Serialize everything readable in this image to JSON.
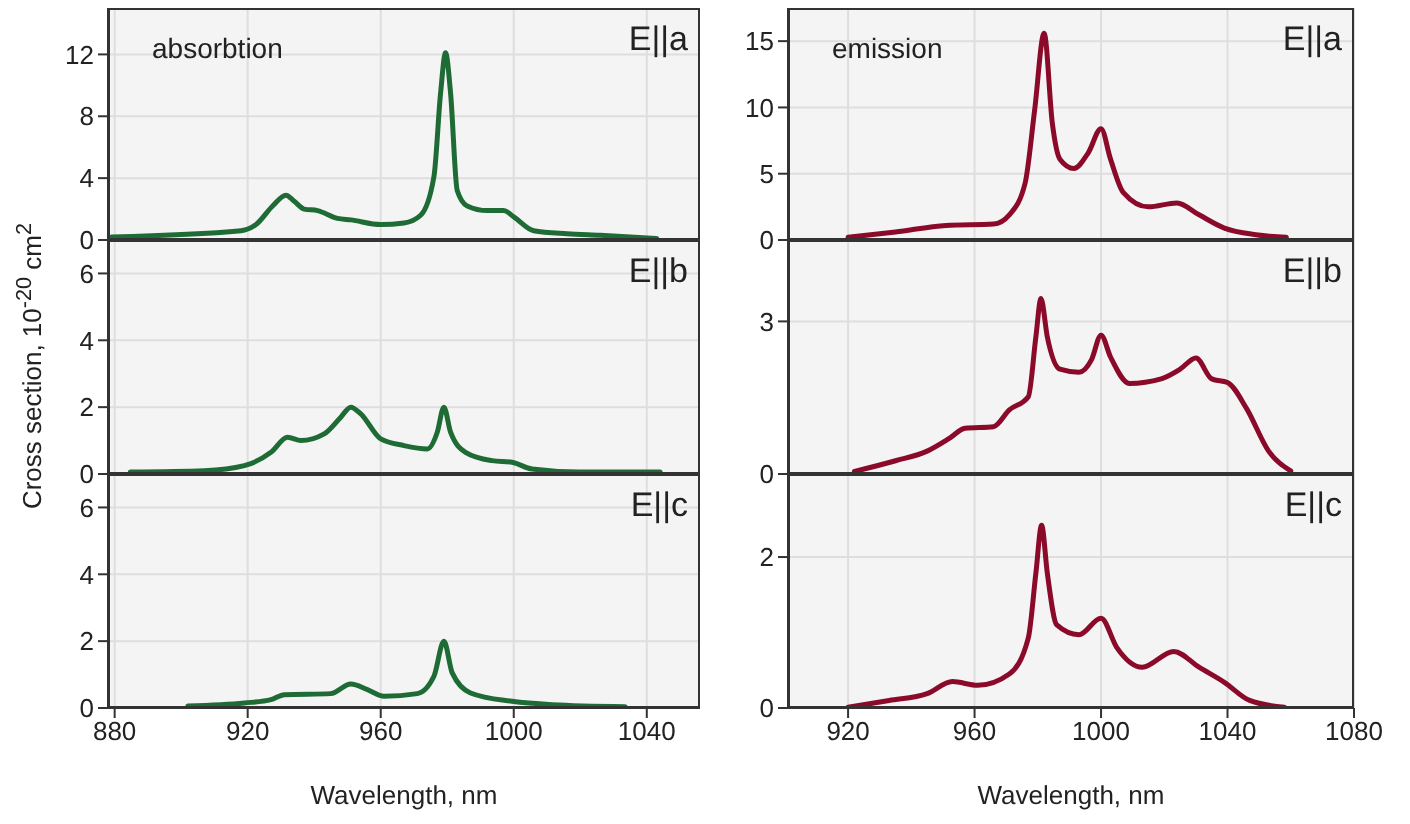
{
  "chart_data": [
    {
      "type": "line",
      "title": "E||a",
      "annotations": [
        "absorbtion"
      ],
      "color": "#1f6b35",
      "tick_labels": "y",
      "grid": true,
      "xlim": [
        878,
        1056
      ],
      "xticks": [
        880,
        920,
        960,
        1000,
        1040
      ],
      "ylim": [
        0,
        15
      ],
      "yticks": [
        0,
        4,
        8,
        12
      ],
      "x": [
        879,
        918,
        922.5,
        927.5,
        931.5,
        934,
        937,
        941,
        947,
        951,
        960,
        967,
        972,
        976,
        978,
        979.5,
        981,
        983,
        986,
        992,
        997,
        1000,
        1006,
        1016,
        1026,
        1043
      ],
      "values": [
        0.2,
        0.6,
        1.0,
        2.2,
        2.9,
        2.5,
        2.0,
        1.9,
        1.4,
        1.3,
        1.0,
        1.1,
        1.6,
        4.1,
        9.5,
        12.1,
        9.5,
        3.2,
        2.2,
        1.9,
        1.9,
        1.5,
        0.6,
        0.4,
        0.3,
        0.1
      ]
    },
    {
      "type": "line",
      "title": "E||a",
      "annotations": [
        "emission"
      ],
      "color": "#8b0a2a",
      "tick_labels": "y",
      "grid": true,
      "xlim": [
        901,
        1080
      ],
      "xticks": [
        920,
        960,
        1000,
        1040,
        1080
      ],
      "ylim": [
        0,
        17.5
      ],
      "yticks": [
        0,
        5,
        10,
        15
      ],
      "x": [
        920,
        935,
        951,
        966,
        971,
        976,
        979,
        982,
        984.6,
        987,
        991.4,
        996,
        1000,
        1003,
        1007,
        1015,
        1024,
        1031,
        1039,
        1049,
        1058.6
      ],
      "values": [
        0.2,
        0.6,
        1.1,
        1.2,
        1.9,
        4.3,
        9.8,
        15.6,
        8.8,
        6.1,
        5.4,
        6.6,
        8.4,
        6.1,
        3.6,
        2.5,
        2.8,
        1.9,
        0.9,
        0.4,
        0.2
      ]
    },
    {
      "type": "line",
      "title": "E||b",
      "ylabel": "Cross section, 10$^{-20}$ cm$^{2}$",
      "color": "#1f6b35",
      "tick_labels": "y",
      "grid": true,
      "xlim": [
        878,
        1056
      ],
      "xticks": [
        880,
        920,
        960,
        1000,
        1040
      ],
      "ylim": [
        0,
        7
      ],
      "yticks": [
        0,
        2,
        4,
        6
      ],
      "x": [
        884.7,
        907,
        919,
        927,
        932,
        936,
        943,
        948,
        951,
        954,
        960,
        967,
        974,
        977,
        979,
        981,
        985.5,
        993.5,
        999.5,
        1005.5,
        1019.5,
        1044
      ],
      "values": [
        0.06,
        0.1,
        0.25,
        0.65,
        1.1,
        1.0,
        1.2,
        1.7,
        2.0,
        1.8,
        1.05,
        0.85,
        0.75,
        1.25,
        2.0,
        1.25,
        0.65,
        0.4,
        0.35,
        0.15,
        0.06,
        0.06
      ]
    },
    {
      "type": "line",
      "title": "E||b",
      "color": "#8b0a2a",
      "tick_labels": "y",
      "grid": true,
      "xlim": [
        901,
        1080
      ],
      "xticks": [
        920,
        960,
        1000,
        1040,
        1080
      ],
      "ylim": [
        0,
        4.6
      ],
      "yticks": [
        0,
        3
      ],
      "x": [
        922,
        935,
        945,
        952,
        957,
        966,
        971,
        977,
        979.4,
        981,
        983,
        987,
        993,
        997,
        1000,
        1003,
        1009,
        1019,
        1025,
        1030,
        1035,
        1040,
        1046,
        1053,
        1060
      ],
      "values": [
        0.05,
        0.26,
        0.45,
        0.7,
        0.9,
        0.93,
        1.26,
        1.52,
        2.7,
        3.45,
        2.7,
        2.06,
        2.0,
        2.25,
        2.73,
        2.3,
        1.78,
        1.87,
        2.06,
        2.28,
        1.87,
        1.8,
        1.29,
        0.45,
        0.06
      ]
    },
    {
      "type": "line",
      "title": "E||c",
      "xlabel": "Wavelength, nm",
      "color": "#1f6b35",
      "grid": true,
      "xlim": [
        878,
        1056
      ],
      "xticks": [
        880,
        920,
        960,
        1000,
        1040
      ],
      "ylim": [
        0,
        7
      ],
      "yticks": [
        0,
        2,
        4,
        6
      ],
      "x": [
        902,
        919,
        927,
        931,
        945,
        951,
        956,
        961,
        971,
        976,
        979,
        981.5,
        987,
        999.5,
        1011.5,
        1033.5
      ],
      "values": [
        0.06,
        0.15,
        0.25,
        0.4,
        0.43,
        0.72,
        0.55,
        0.35,
        0.43,
        0.95,
        2.0,
        1.05,
        0.45,
        0.2,
        0.1,
        0.04
      ]
    },
    {
      "type": "line",
      "title": "E||c",
      "xlabel": "Wavelength, nm",
      "color": "#8b0a2a",
      "grid": true,
      "xlim": [
        901,
        1080
      ],
      "xticks": [
        920,
        960,
        1000,
        1040,
        1080
      ],
      "ylim": [
        0,
        3.1
      ],
      "yticks": [
        0,
        2
      ],
      "x": [
        920,
        933,
        945,
        953,
        961,
        971,
        977,
        979.4,
        981.2,
        983,
        986,
        993,
        1000,
        1005,
        1013,
        1023,
        1031,
        1039,
        1047,
        1058
      ],
      "values": [
        0.01,
        0.1,
        0.19,
        0.35,
        0.3,
        0.45,
        0.93,
        1.79,
        2.42,
        1.79,
        1.1,
        0.97,
        1.19,
        0.8,
        0.54,
        0.75,
        0.54,
        0.34,
        0.1,
        0.01
      ]
    }
  ]
}
